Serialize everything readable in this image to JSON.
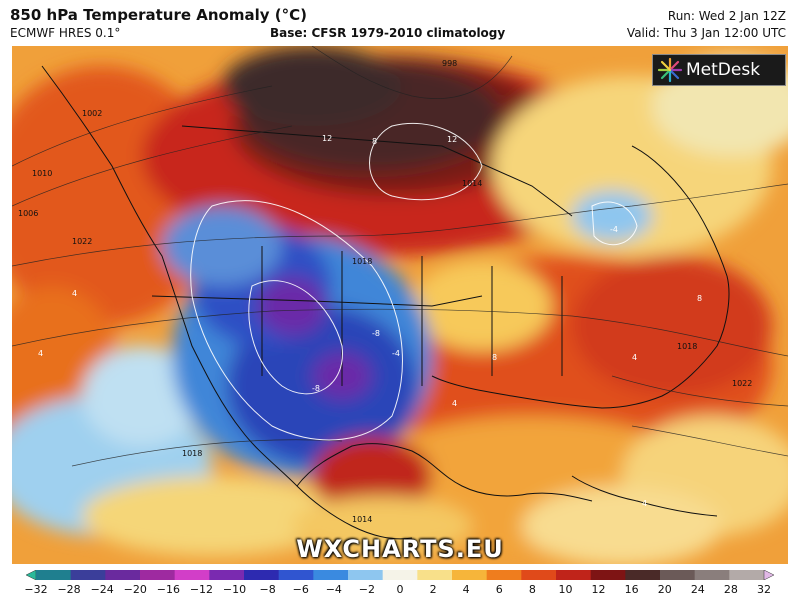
{
  "header": {
    "title": "850 hPa Temperature Anomaly (°C)",
    "model": "ECMWF HRES 0.1°",
    "base": "Base: CFSR 1979-2010 climatology",
    "run": "Run: Wed 2 Jan 12Z",
    "valid": "Valid: Thu 3 Jan 12:00 UTC"
  },
  "logo": {
    "text": "MetDesk",
    "icon": "metdesk-starburst-icon"
  },
  "watermark": "WXCHARTS.EU",
  "map": {
    "region": "North America",
    "contour_labels": [
      "998",
      "1002",
      "1006",
      "1010",
      "1014",
      "1018",
      "1022",
      "1006",
      "1018",
      "1014",
      "1018",
      "1018",
      "1022",
      "1010",
      "1014"
    ],
    "anomaly_labels": [
      "12",
      "12",
      "8",
      "4",
      "-4",
      "-8",
      "-8",
      "8",
      "4",
      "-4",
      "4",
      "8",
      "4",
      "4"
    ]
  },
  "colorbar": {
    "ticks": [
      "−32",
      "−28",
      "−24",
      "−20",
      "−16",
      "−12",
      "−10",
      "−8",
      "−6",
      "−4",
      "−2",
      "0",
      "2",
      "4",
      "6",
      "8",
      "10",
      "12",
      "16",
      "20",
      "24",
      "28",
      "32"
    ],
    "colors": [
      "#2ab99a",
      "#1f7f8f",
      "#3b3e9a",
      "#6a2a9e",
      "#9e2aa0",
      "#d23ec8",
      "#7a2ab0",
      "#2d2ab0",
      "#3055d0",
      "#3a8ae0",
      "#8ec6ef",
      "#f5f3e8",
      "#f8e08a",
      "#f6b53a",
      "#ef7d1e",
      "#e04a1a",
      "#c0241a",
      "#7e1414",
      "#4a2a28",
      "#6b5a58",
      "#8a7e7c",
      "#b3aaa8",
      "#e1b8e6"
    ]
  }
}
